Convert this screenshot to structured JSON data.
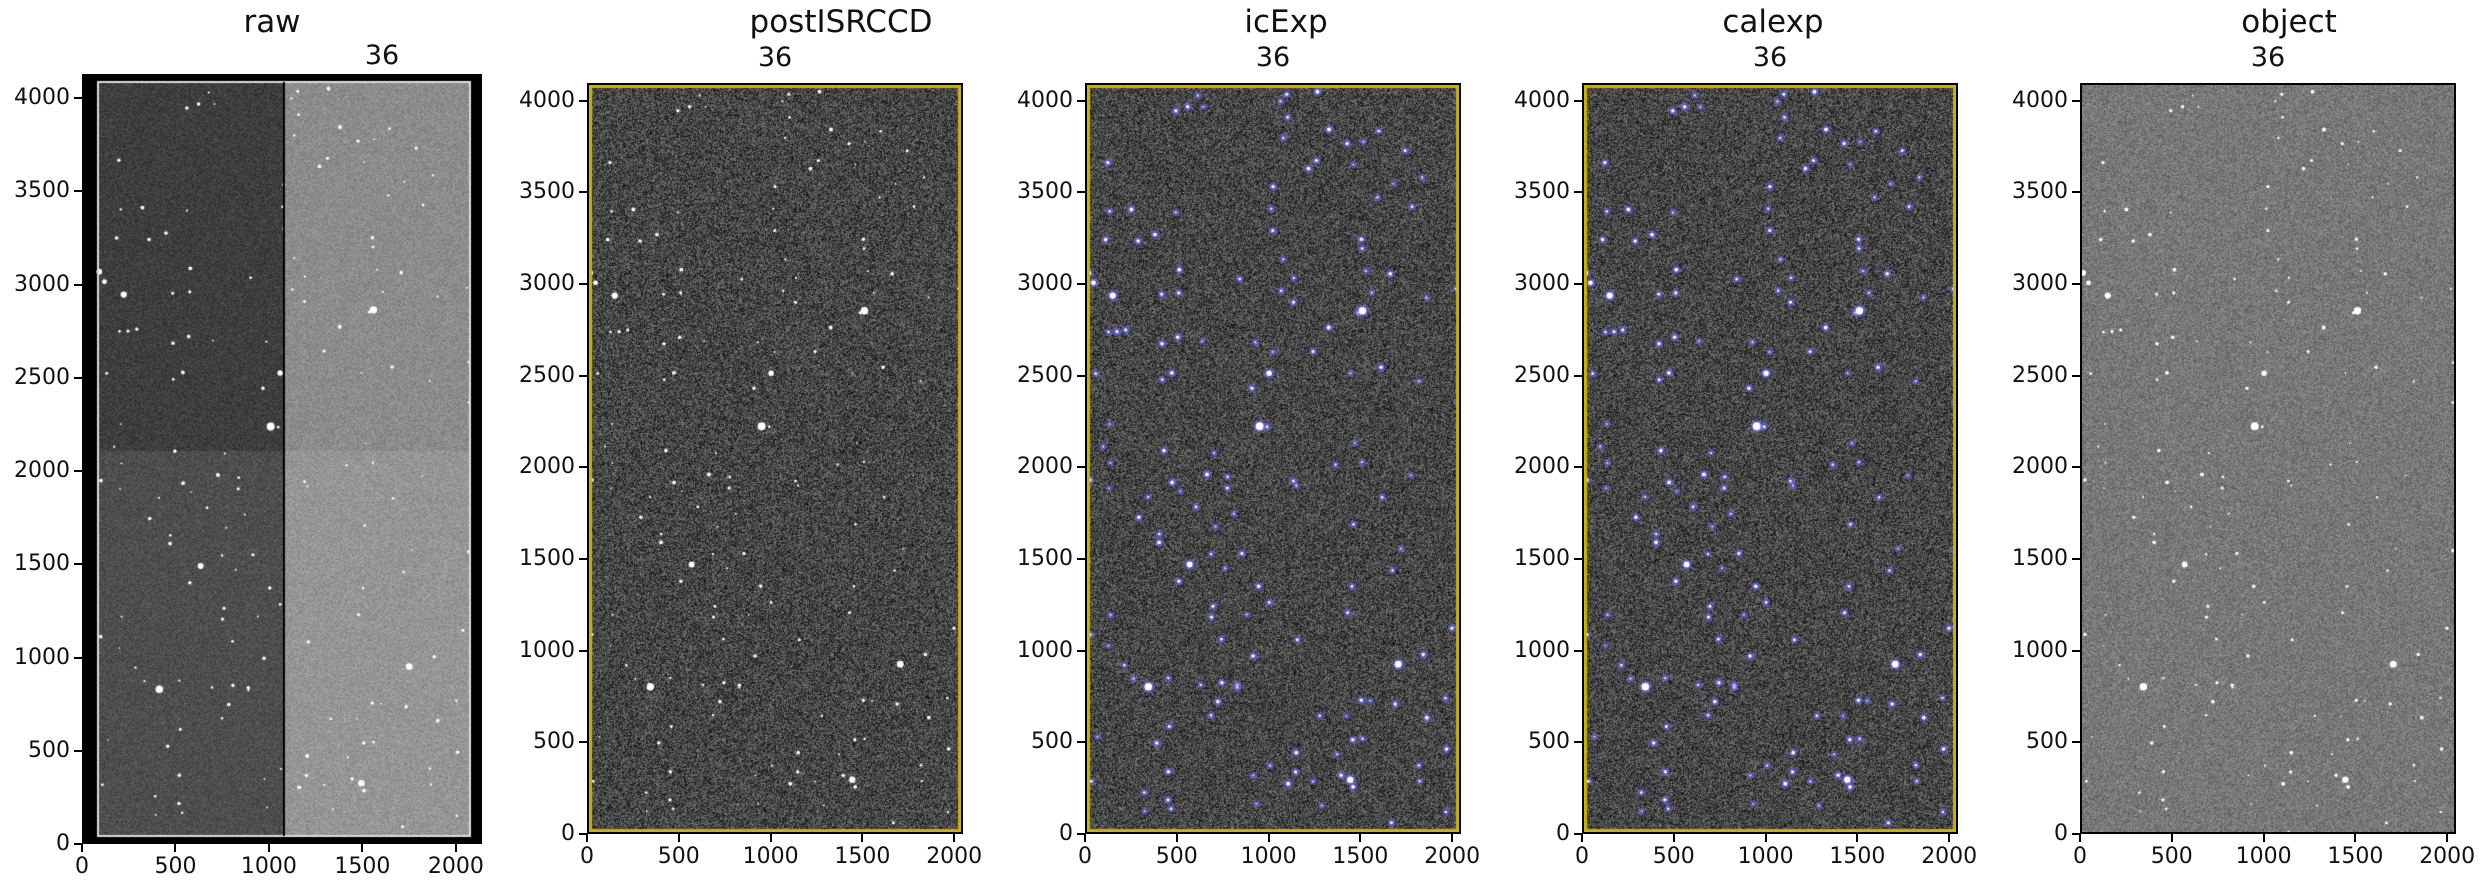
{
  "panels": [
    {
      "title": "raw",
      "subtitle": "36",
      "kind": "raw"
    },
    {
      "title": "postISRCCD",
      "subtitle": "36",
      "kind": "isr"
    },
    {
      "title": "icExp",
      "subtitle": "36",
      "kind": "mask"
    },
    {
      "title": "calexp",
      "subtitle": "36",
      "kind": "mask"
    },
    {
      "title": "object",
      "subtitle": "36",
      "kind": "object"
    }
  ],
  "raw_axes": {
    "y_ticks": [
      "4000",
      "3500",
      "3000",
      "2500",
      "2000",
      "1500",
      "1000",
      "500",
      "0"
    ],
    "x_ticks": [
      "0",
      "500",
      "1000",
      "1500",
      "2000"
    ],
    "xlim": [
      0,
      2140
    ],
    "ylim": [
      0,
      4130
    ]
  },
  "axes": {
    "y_ticks": [
      "4000",
      "3500",
      "3000",
      "2500",
      "2000",
      "1500",
      "1000",
      "500",
      "0"
    ],
    "x_ticks": [
      "0",
      "500",
      "1000",
      "1500",
      "2000"
    ],
    "xlim": [
      0,
      2048
    ],
    "ylim": [
      0,
      4096
    ]
  },
  "colors": {
    "mask_blue": "#6b6bff",
    "border_yellow": "#c8b400"
  }
}
